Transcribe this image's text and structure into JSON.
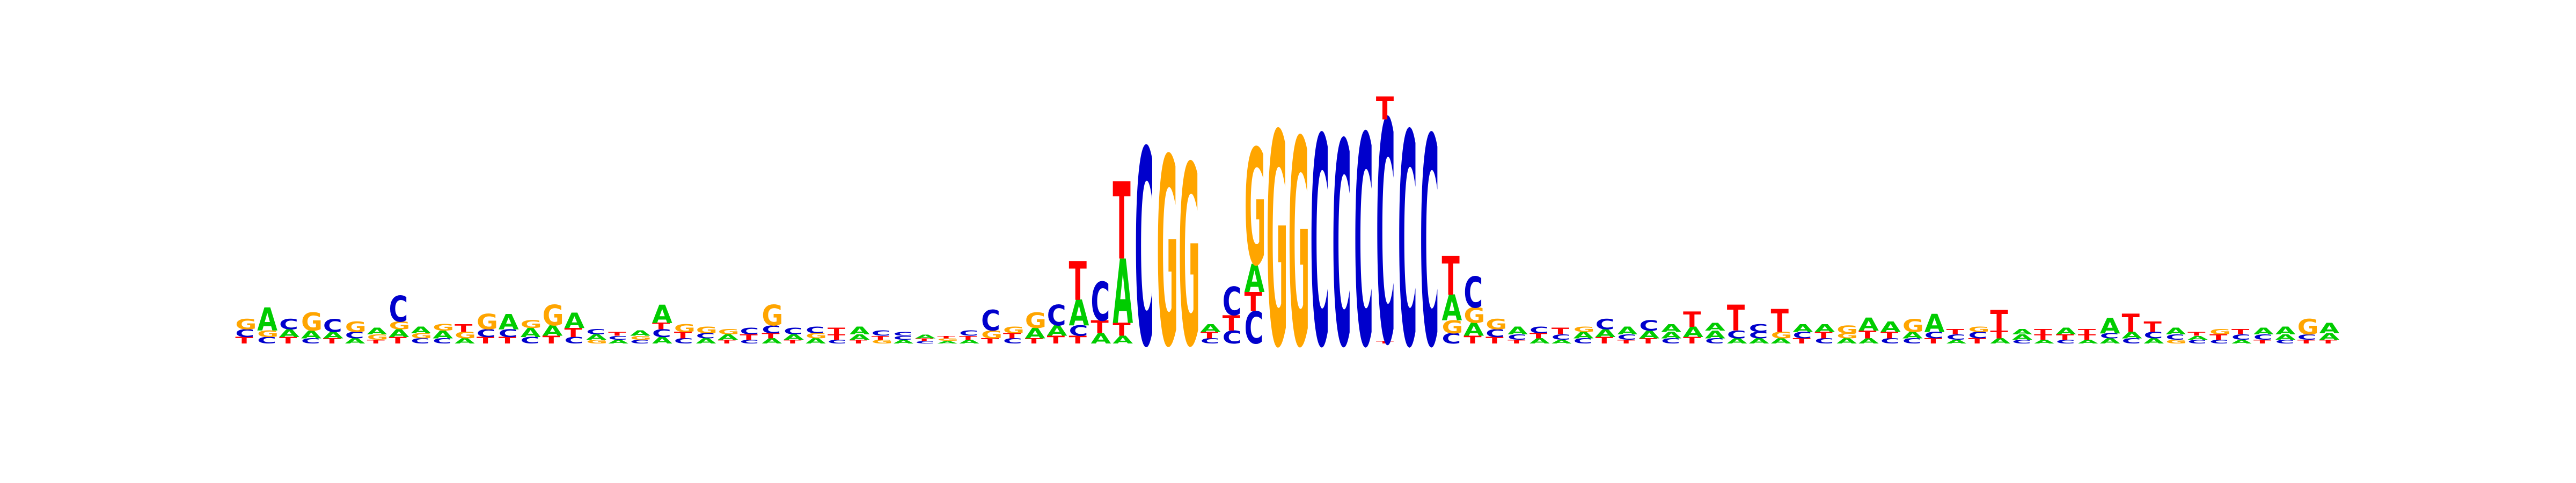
{
  "logo": {
    "type": "sequence-logo",
    "colors": {
      "A": "#00cc00",
      "C": "#0000cc",
      "G": "#ffa500",
      "T": "#ff0000"
    },
    "positions": [
      [
        [
          "T",
          0.05
        ],
        [
          "C",
          0.06
        ],
        [
          "G",
          0.08
        ]
      ],
      [
        [
          "C",
          0.05
        ],
        [
          "G",
          0.05
        ],
        [
          "A",
          0.18
        ]
      ],
      [
        [
          "T",
          0.05
        ],
        [
          "A",
          0.06
        ],
        [
          "C",
          0.08
        ]
      ],
      [
        [
          "C",
          0.04
        ],
        [
          "A",
          0.06
        ],
        [
          "G",
          0.14
        ]
      ],
      [
        [
          "T",
          0.04
        ],
        [
          "A",
          0.05
        ],
        [
          "C",
          0.1
        ]
      ],
      [
        [
          "A",
          0.04
        ],
        [
          "C",
          0.05
        ],
        [
          "G",
          0.08
        ]
      ],
      [
        [
          "T",
          0.03
        ],
        [
          "G",
          0.04
        ],
        [
          "A",
          0.05
        ]
      ],
      [
        [
          "T",
          0.05
        ],
        [
          "A",
          0.06
        ],
        [
          "G",
          0.06
        ],
        [
          "C",
          0.2
        ]
      ],
      [
        [
          "C",
          0.04
        ],
        [
          "G",
          0.04
        ],
        [
          "A",
          0.05
        ]
      ],
      [
        [
          "C",
          0.04
        ],
        [
          "A",
          0.06
        ],
        [
          "G",
          0.05
        ]
      ],
      [
        [
          "A",
          0.04
        ],
        [
          "G",
          0.05
        ],
        [
          "T",
          0.06
        ]
      ],
      [
        [
          "T",
          0.05
        ],
        [
          "C",
          0.06
        ],
        [
          "G",
          0.12
        ]
      ],
      [
        [
          "T",
          0.05
        ],
        [
          "C",
          0.06
        ],
        [
          "A",
          0.12
        ]
      ],
      [
        [
          "C",
          0.05
        ],
        [
          "A",
          0.07
        ],
        [
          "G",
          0.06
        ]
      ],
      [
        [
          "T",
          0.06
        ],
        [
          "A",
          0.08
        ],
        [
          "G",
          0.16
        ]
      ],
      [
        [
          "C",
          0.05
        ],
        [
          "T",
          0.07
        ],
        [
          "A",
          0.12
        ]
      ],
      [
        [
          "G",
          0.03
        ],
        [
          "A",
          0.04
        ],
        [
          "C",
          0.04
        ]
      ],
      [
        [
          "A",
          0.03
        ],
        [
          "C",
          0.03
        ],
        [
          "T",
          0.03
        ]
      ],
      [
        [
          "C",
          0.03
        ],
        [
          "G",
          0.03
        ],
        [
          "A",
          0.04
        ]
      ],
      [
        [
          "A",
          0.05
        ],
        [
          "C",
          0.06
        ],
        [
          "T",
          0.05
        ],
        [
          "A",
          0.14
        ]
      ],
      [
        [
          "C",
          0.04
        ],
        [
          "T",
          0.05
        ],
        [
          "G",
          0.06
        ]
      ],
      [
        [
          "A",
          0.04
        ],
        [
          "C",
          0.04
        ],
        [
          "G",
          0.05
        ]
      ],
      [
        [
          "T",
          0.03
        ],
        [
          "A",
          0.04
        ],
        [
          "G",
          0.04
        ]
      ],
      [
        [
          "C",
          0.03
        ],
        [
          "T",
          0.04
        ],
        [
          "C",
          0.05
        ]
      ],
      [
        [
          "A",
          0.04
        ],
        [
          "T",
          0.04
        ],
        [
          "C",
          0.06
        ],
        [
          "G",
          0.16
        ]
      ],
      [
        [
          "T",
          0.03
        ],
        [
          "A",
          0.04
        ],
        [
          "C",
          0.05
        ]
      ],
      [
        [
          "A",
          0.04
        ],
        [
          "G",
          0.04
        ],
        [
          "C",
          0.05
        ]
      ],
      [
        [
          "C",
          0.03
        ],
        [
          "T",
          0.04
        ],
        [
          "T",
          0.05
        ]
      ],
      [
        [
          "T",
          0.03
        ],
        [
          "A",
          0.04
        ],
        [
          "A",
          0.06
        ]
      ],
      [
        [
          "G",
          0.03
        ],
        [
          "T",
          0.03
        ],
        [
          "C",
          0.04
        ]
      ],
      [
        [
          "A",
          0.03
        ],
        [
          "C",
          0.03
        ],
        [
          "C",
          0.03
        ]
      ],
      [
        [
          "C",
          0.02
        ],
        [
          "T",
          0.02
        ],
        [
          "A",
          0.03
        ]
      ],
      [
        [
          "A",
          0.02
        ],
        [
          "G",
          0.02
        ],
        [
          "T",
          0.02
        ]
      ],
      [
        [
          "A",
          0.03
        ],
        [
          "T",
          0.03
        ],
        [
          "C",
          0.04
        ]
      ],
      [
        [
          "T",
          0.04
        ],
        [
          "G",
          0.06
        ],
        [
          "C",
          0.16
        ]
      ],
      [
        [
          "C",
          0.04
        ],
        [
          "T",
          0.04
        ],
        [
          "G",
          0.05
        ]
      ],
      [
        [
          "T",
          0.04
        ],
        [
          "A",
          0.08
        ],
        [
          "G",
          0.12
        ]
      ],
      [
        [
          "T",
          0.06
        ],
        [
          "A",
          0.08
        ],
        [
          "C",
          0.16
        ]
      ],
      [
        [
          "T",
          0.06
        ],
        [
          "C",
          0.08
        ],
        [
          "A",
          0.2
        ],
        [
          "T",
          0.3
        ]
      ],
      [
        [
          "A",
          0.08
        ],
        [
          "T",
          0.1
        ],
        [
          "C",
          0.3
        ]
      ],
      [
        [
          "A",
          0.06
        ],
        [
          "T",
          0.1
        ],
        [
          "A",
          0.5
        ],
        [
          "T",
          0.6
        ]
      ],
      [
        [
          "C",
          1.52
        ]
      ],
      [
        [
          "G",
          1.46
        ]
      ],
      [
        [
          "G",
          1.4
        ]
      ],
      [
        [
          "C",
          0.04
        ],
        [
          "T",
          0.05
        ],
        [
          "A",
          0.06
        ]
      ],
      [
        [
          "C",
          0.1
        ],
        [
          "T",
          0.12
        ],
        [
          "C",
          0.22
        ]
      ],
      [
        [
          "C",
          0.25
        ],
        [
          "T",
          0.15
        ],
        [
          "A",
          0.22
        ],
        [
          "G",
          0.9
        ]
      ],
      [
        [
          "G",
          1.65
        ]
      ],
      [
        [
          "G",
          1.6
        ]
      ],
      [
        [
          "C",
          1.62
        ]
      ],
      [
        [
          "C",
          1.58
        ]
      ],
      [
        [
          "C",
          1.63
        ]
      ],
      [
        [
          "T",
          0.02
        ],
        [
          "C",
          1.72
        ],
        [
          "T",
          0.18
        ]
      ],
      [
        [
          "C",
          1.65
        ]
      ],
      [
        [
          "C",
          1.62
        ]
      ],
      [
        [
          "C",
          0.08
        ],
        [
          "G",
          0.1
        ],
        [
          "A",
          0.2
        ],
        [
          "T",
          0.3
        ]
      ],
      [
        [
          "T",
          0.06
        ],
        [
          "A",
          0.1
        ],
        [
          "G",
          0.12
        ],
        [
          "C",
          0.24
        ]
      ],
      [
        [
          "T",
          0.05
        ],
        [
          "C",
          0.06
        ],
        [
          "G",
          0.08
        ]
      ],
      [
        [
          "T",
          0.03
        ],
        [
          "C",
          0.04
        ],
        [
          "A",
          0.06
        ]
      ],
      [
        [
          "A",
          0.04
        ],
        [
          "T",
          0.04
        ],
        [
          "C",
          0.05
        ]
      ],
      [
        [
          "A",
          0.03
        ],
        [
          "C",
          0.04
        ],
        [
          "T",
          0.05
        ]
      ],
      [
        [
          "C",
          0.04
        ],
        [
          "A",
          0.05
        ],
        [
          "G",
          0.04
        ]
      ],
      [
        [
          "T",
          0.05
        ],
        [
          "A",
          0.06
        ],
        [
          "C",
          0.08
        ]
      ],
      [
        [
          "T",
          0.03
        ],
        [
          "C",
          0.04
        ],
        [
          "A",
          0.06
        ]
      ],
      [
        [
          "T",
          0.04
        ],
        [
          "A",
          0.06
        ],
        [
          "C",
          0.08
        ]
      ],
      [
        [
          "C",
          0.04
        ],
        [
          "A",
          0.05
        ],
        [
          "A",
          0.06
        ]
      ],
      [
        [
          "T",
          0.05
        ],
        [
          "A",
          0.08
        ],
        [
          "T",
          0.12
        ]
      ],
      [
        [
          "C",
          0.04
        ],
        [
          "A",
          0.06
        ],
        [
          "A",
          0.06
        ]
      ],
      [
        [
          "A",
          0.04
        ],
        [
          "C",
          0.06
        ],
        [
          "T",
          0.2
        ]
      ],
      [
        [
          "A",
          0.04
        ],
        [
          "C",
          0.05
        ],
        [
          "C",
          0.06
        ]
      ],
      [
        [
          "A",
          0.04
        ],
        [
          "G",
          0.05
        ],
        [
          "T",
          0.18
        ]
      ],
      [
        [
          "T",
          0.04
        ],
        [
          "C",
          0.05
        ],
        [
          "A",
          0.06
        ]
      ],
      [
        [
          "C",
          0.04
        ],
        [
          "T",
          0.05
        ],
        [
          "A",
          0.06
        ]
      ],
      [
        [
          "A",
          0.04
        ],
        [
          "G",
          0.04
        ],
        [
          "G",
          0.06
        ]
      ],
      [
        [
          "A",
          0.04
        ],
        [
          "T",
          0.06
        ],
        [
          "A",
          0.1
        ]
      ],
      [
        [
          "C",
          0.04
        ],
        [
          "T",
          0.05
        ],
        [
          "A",
          0.08
        ]
      ],
      [
        [
          "C",
          0.04
        ],
        [
          "A",
          0.05
        ],
        [
          "G",
          0.1
        ]
      ],
      [
        [
          "T",
          0.04
        ],
        [
          "C",
          0.05
        ],
        [
          "A",
          0.14
        ]
      ],
      [
        [
          "A",
          0.03
        ],
        [
          "C",
          0.04
        ],
        [
          "T",
          0.04
        ]
      ],
      [
        [
          "T",
          0.04
        ],
        [
          "C",
          0.05
        ],
        [
          "G",
          0.04
        ]
      ],
      [
        [
          "A",
          0.04
        ],
        [
          "T",
          0.06
        ],
        [
          "T",
          0.16
        ]
      ],
      [
        [
          "C",
          0.03
        ],
        [
          "A",
          0.04
        ],
        [
          "A",
          0.04
        ]
      ],
      [
        [
          "A",
          0.03
        ],
        [
          "T",
          0.04
        ],
        [
          "T",
          0.04
        ]
      ],
      [
        [
          "C",
          0.03
        ],
        [
          "T",
          0.04
        ],
        [
          "A",
          0.05
        ]
      ],
      [
        [
          "A",
          0.03
        ],
        [
          "T",
          0.04
        ],
        [
          "T",
          0.04
        ]
      ],
      [
        [
          "A",
          0.04
        ],
        [
          "C",
          0.04
        ],
        [
          "A",
          0.12
        ]
      ],
      [
        [
          "C",
          0.04
        ],
        [
          "A",
          0.05
        ],
        [
          "T",
          0.14
        ]
      ],
      [
        [
          "A",
          0.04
        ],
        [
          "C",
          0.05
        ],
        [
          "T",
          0.08
        ]
      ],
      [
        [
          "G",
          0.03
        ],
        [
          "C",
          0.04
        ],
        [
          "A",
          0.05
        ]
      ],
      [
        [
          "C",
          0.03
        ],
        [
          "A",
          0.03
        ],
        [
          "T",
          0.03
        ]
      ],
      [
        [
          "C",
          0.03
        ],
        [
          "T",
          0.04
        ],
        [
          "G",
          0.04
        ]
      ],
      [
        [
          "A",
          0.03
        ],
        [
          "C",
          0.04
        ],
        [
          "T",
          0.04
        ]
      ],
      [
        [
          "T",
          0.03
        ],
        [
          "C",
          0.04
        ],
        [
          "A",
          0.05
        ]
      ],
      [
        [
          "C",
          0.03
        ],
        [
          "A",
          0.04
        ],
        [
          "A",
          0.06
        ]
      ],
      [
        [
          "T",
          0.03
        ],
        [
          "C",
          0.04
        ],
        [
          "G",
          0.12
        ]
      ],
      [
        [
          "T",
          0.03
        ],
        [
          "A",
          0.05
        ],
        [
          "A",
          0.08
        ]
      ]
    ]
  }
}
